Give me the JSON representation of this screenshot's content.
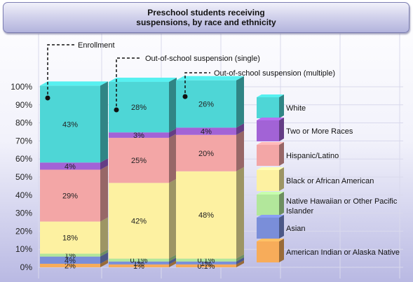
{
  "chart_data": {
    "type": "bar",
    "stacked": true,
    "title_line1": "Preschool students receiving",
    "title_line2": "suspensions, by race and ethnicity",
    "ylim": [
      0,
      100
    ],
    "y_ticks": [
      "0%",
      "10%",
      "20%",
      "30%",
      "40%",
      "50%",
      "60%",
      "70%",
      "80%",
      "90%",
      "100%"
    ],
    "grid": true,
    "legend_position": "right",
    "categories": [
      "Enrollment",
      "Out-of-school suspension (single)",
      "Out-of-school suspension (multiple)"
    ],
    "series": [
      {
        "name": "American Indian or Alaska Native",
        "color": "#f7ac5a",
        "values": [
          2,
          1,
          0.1
        ],
        "labels": [
          "2%",
          "1%",
          "0.1%"
        ]
      },
      {
        "name": "Asian",
        "color": "#7a8ed9",
        "values": [
          4,
          1,
          1
        ],
        "labels": [
          "4%",
          "1%",
          "1%"
        ]
      },
      {
        "name": "Native Hawaiian or Other Pacific Islander",
        "color": "#b2e79b",
        "values": [
          1,
          0.1,
          0.1
        ],
        "labels": [
          "1%",
          "0.1%",
          "0.1%"
        ]
      },
      {
        "name": "Black or African American",
        "color": "#fdf1a1",
        "values": [
          18,
          42,
          48
        ],
        "labels": [
          "18%",
          "42%",
          "48%"
        ]
      },
      {
        "name": "Hispanic/Latino",
        "color": "#f3a6a6",
        "values": [
          29,
          25,
          20
        ],
        "labels": [
          "29%",
          "25%",
          "20%"
        ]
      },
      {
        "name": "Two or More Races",
        "color": "#a263d6",
        "values": [
          4,
          3,
          4
        ],
        "labels": [
          "4%",
          "3%",
          "4%"
        ]
      },
      {
        "name": "White",
        "color": "#4ed6d6",
        "values": [
          43,
          28,
          26
        ],
        "labels": [
          "43%",
          "28%",
          "26%"
        ]
      }
    ]
  }
}
